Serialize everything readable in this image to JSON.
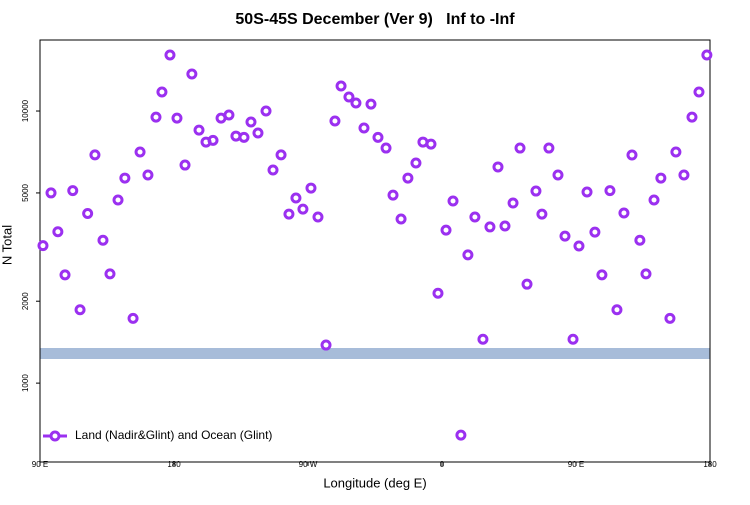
{
  "chart_data": {
    "type": "scatter",
    "title": "50S-45S December (Ver 9)   Inf to -Inf",
    "x_label": "Longitude (deg E)",
    "y_label": "N Total",
    "log_y": true,
    "xlim": [
      90,
      540
    ],
    "ylim": [
      513,
      18240
    ],
    "xticks": [
      {
        "value": 90,
        "label": "90 E"
      },
      180,
      {
        "value": 270,
        "label": "90 W"
      },
      {
        "value": 360,
        "label": "0"
      },
      {
        "value": 450,
        "label": "90 E"
      },
      {
        "value": 540,
        "label": "180"
      }
    ],
    "yticks": [
      1000,
      2000,
      5000,
      10000
    ],
    "legend": "bottom-left",
    "series": [
      {
        "name": "Land (Nadir&Glint) and Ocean (Glint)",
        "color": "#9b30f0",
        "x": [
          92,
          97.4,
          102,
          106.8,
          112,
          116.9,
          122,
          126.9,
          132.3,
          137,
          142.4,
          147,
          152.5,
          157.2,
          162.5,
          167.9,
          171.9,
          177.3,
          182,
          187.4,
          192,
          196.8,
          201.5,
          206.2,
          211.6,
          216.9,
          221.6,
          227,
          231.7,
          236.4,
          241.8,
          246.5,
          251.9,
          257.2,
          261.9,
          266.6,
          272,
          276.7,
          282.1,
          288.1,
          292.2,
          297.5,
          302.2,
          307.6,
          312.3,
          317,
          322.4,
          327.1,
          332.5,
          337.1,
          342.5,
          347.2,
          352.6,
          357.3,
          362.7,
          367.4,
          372.7,
          377.4,
          382.1,
          387.5,
          392.2,
          397.6,
          402.3,
          407.7,
          412.4,
          417.1,
          423.1,
          427.1,
          431.8,
          437.9,
          442.6,
          448,
          452,
          457.4,
          462.7,
          467.4,
          472.8,
          477.5,
          482.2,
          487.6,
          492.9,
          497,
          502.4,
          507,
          513.1,
          517.1,
          522.5,
          527.9,
          532.6,
          537.9
        ],
        "values": [
          3200,
          5000,
          3600,
          2500,
          5100,
          1860,
          4200,
          6900,
          3350,
          2520,
          4710,
          5670,
          1730,
          7070,
          5820,
          9500,
          11750,
          16060,
          9420,
          6330,
          13680,
          8510,
          7690,
          7800,
          9420,
          9670,
          8090,
          8000,
          9110,
          8300,
          10000,
          6070,
          6900,
          4180,
          4790,
          4360,
          5210,
          4080,
          1380,
          9190,
          12360,
          11260,
          10700,
          8660,
          10600,
          8000,
          7310,
          4910,
          4010,
          5670,
          6440,
          7690,
          7560,
          2140,
          3650,
          4670,
          644,
          2960,
          4080,
          1450,
          3750,
          6230,
          3780,
          4590,
          7310,
          2310,
          5080,
          4180,
          7310,
          5820,
          3470,
          1450,
          3190,
          5040,
          3590,
          2500,
          5100,
          1860,
          4220,
          6890,
          3350,
          2520,
          4710,
          5670,
          1730,
          7070,
          5820,
          9500,
          11750,
          16060
        ]
      }
    ]
  }
}
